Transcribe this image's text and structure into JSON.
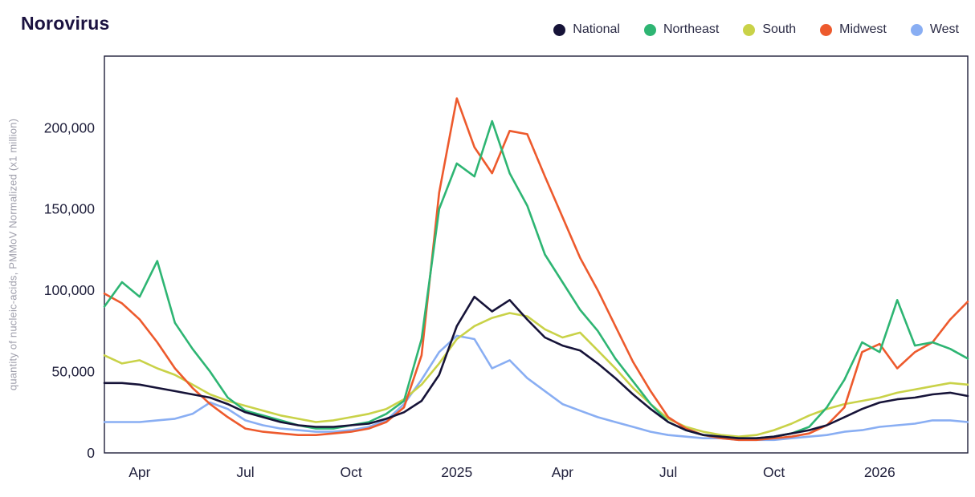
{
  "page": {
    "title": "Norovirus"
  },
  "chart_data": {
    "type": "line",
    "title": "Norovirus",
    "ylabel": "quantity of nucleic-acids, PMMoV Normalized (x1 million)",
    "xlabel": "",
    "ylim": [
      0,
      244000
    ],
    "grid": false,
    "legend_position": "top-right",
    "x_step_months": 0.5,
    "x_range_months": 24.5,
    "x_ticks": [
      {
        "label": "Apr",
        "t": 1
      },
      {
        "label": "Jul",
        "t": 4
      },
      {
        "label": "Oct",
        "t": 7
      },
      {
        "label": "2025",
        "t": 10
      },
      {
        "label": "Apr",
        "t": 13
      },
      {
        "label": "Jul",
        "t": 16
      },
      {
        "label": "Oct",
        "t": 19
      },
      {
        "label": "2026",
        "t": 22
      }
    ],
    "y_ticks": [
      {
        "label": "0",
        "value": 0
      },
      {
        "label": "50,000",
        "value": 50000
      },
      {
        "label": "100,000",
        "value": 100000
      },
      {
        "label": "150,000",
        "value": 150000
      },
      {
        "label": "200,000",
        "value": 200000
      }
    ],
    "series": [
      {
        "name": "National",
        "color": "#161338",
        "values": [
          43000,
          43000,
          42000,
          40000,
          38000,
          36000,
          34000,
          30000,
          25000,
          22000,
          19000,
          17000,
          16000,
          16000,
          17000,
          18000,
          21000,
          25000,
          32000,
          48000,
          78000,
          96000,
          87000,
          94000,
          82000,
          71000,
          66000,
          63000,
          55000,
          46000,
          36000,
          27000,
          19000,
          14000,
          11000,
          10000,
          9000,
          9000,
          10000,
          12000,
          14000,
          17000,
          22000,
          27000,
          31000,
          33000,
          34000,
          36000,
          37000,
          35000
        ]
      },
      {
        "name": "Northeast",
        "color": "#2eb573",
        "values": [
          90000,
          105000,
          96000,
          118000,
          80000,
          64000,
          50000,
          34000,
          26000,
          23000,
          20000,
          17000,
          15000,
          15000,
          17000,
          19000,
          24000,
          32000,
          70000,
          150000,
          178000,
          170000,
          204000,
          172000,
          152000,
          122000,
          105000,
          88000,
          75000,
          58000,
          44000,
          30000,
          19000,
          14000,
          11000,
          10000,
          9000,
          9000,
          10000,
          12000,
          16000,
          28000,
          45000,
          68000,
          62000,
          94000,
          66000,
          68000,
          64000,
          58000
        ]
      },
      {
        "name": "South",
        "color": "#c9d248",
        "values": [
          60000,
          55000,
          57000,
          52000,
          48000,
          42000,
          36000,
          32000,
          29000,
          26000,
          23000,
          21000,
          19000,
          20000,
          22000,
          24000,
          27000,
          33000,
          42000,
          55000,
          70000,
          78000,
          83000,
          86000,
          84000,
          76000,
          71000,
          74000,
          63000,
          52000,
          40000,
          30000,
          21000,
          16000,
          13000,
          11000,
          10000,
          11000,
          14000,
          18000,
          23000,
          27000,
          30000,
          32000,
          34000,
          37000,
          39000,
          41000,
          43000,
          42000
        ]
      },
      {
        "name": "Midwest",
        "color": "#ed5a2d",
        "values": [
          98000,
          92000,
          82000,
          68000,
          52000,
          40000,
          30000,
          22000,
          15000,
          13000,
          12000,
          11000,
          11000,
          12000,
          13000,
          15000,
          19000,
          28000,
          60000,
          160000,
          218000,
          188000,
          172000,
          198000,
          196000,
          170000,
          145000,
          120000,
          100000,
          78000,
          56000,
          38000,
          22000,
          15000,
          11000,
          9000,
          8000,
          8000,
          9000,
          10000,
          12000,
          17000,
          28000,
          62000,
          67000,
          52000,
          62000,
          68000,
          82000,
          93000
        ]
      },
      {
        "name": "West",
        "color": "#89aef3",
        "values": [
          19000,
          19000,
          19000,
          20000,
          21000,
          24000,
          31000,
          27000,
          20000,
          17000,
          15000,
          14000,
          13000,
          13000,
          14000,
          16000,
          20000,
          30000,
          45000,
          62000,
          72000,
          70000,
          52000,
          57000,
          46000,
          38000,
          30000,
          26000,
          22000,
          19000,
          16000,
          13000,
          11000,
          10000,
          9000,
          9000,
          8000,
          8000,
          8000,
          9000,
          10000,
          11000,
          13000,
          14000,
          16000,
          17000,
          18000,
          20000,
          20000,
          19000
        ]
      }
    ]
  }
}
